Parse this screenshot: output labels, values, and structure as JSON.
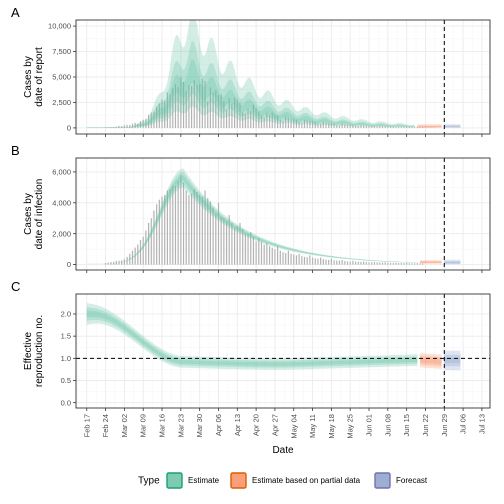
{
  "chart_data": {
    "type": "area",
    "x_axis": {
      "label": "Date",
      "start": "2020-02-13",
      "end": "2020-07-16",
      "tick_labels": [
        "Feb 17",
        "Feb 24",
        "Mar 02",
        "Mar 09",
        "Mar 16",
        "Mar 23",
        "Mar 30",
        "Apr 06",
        "Apr 13",
        "Apr 20",
        "Apr 27",
        "May 04",
        "May 11",
        "May 18",
        "May 25",
        "Jun 01",
        "Jun 08",
        "Jun 15",
        "Jun 22",
        "Jun 29",
        "Jul 06",
        "Jul 13"
      ],
      "tick_dates": [
        "2020-02-17",
        "2020-02-24",
        "2020-03-02",
        "2020-03-09",
        "2020-03-16",
        "2020-03-23",
        "2020-03-30",
        "2020-04-06",
        "2020-04-13",
        "2020-04-20",
        "2020-04-27",
        "2020-05-04",
        "2020-05-11",
        "2020-05-18",
        "2020-05-25",
        "2020-06-01",
        "2020-06-08",
        "2020-06-15",
        "2020-06-22",
        "2020-06-29",
        "2020-07-06",
        "2020-07-13"
      ],
      "vline_date": "2020-06-29"
    },
    "legend": {
      "title": "Type",
      "placement": "bottom",
      "entries": [
        {
          "label": "Estimate",
          "fill": "#66c2a5",
          "stroke": "#1b9e77"
        },
        {
          "label": "Estimate based on partial data",
          "fill": "#fc8d62",
          "stroke": "#d95f02"
        },
        {
          "label": "Forecast",
          "fill": "#8da0cb",
          "stroke": "#7570b3"
        }
      ]
    },
    "panels": [
      {
        "tag": "A",
        "ylabel": [
          "Cases by",
          "date of report"
        ],
        "ylim": [
          -600,
          10600
        ],
        "yticks": [
          0,
          2500,
          5000,
          7500,
          10000
        ],
        "yticklabels": [
          "0",
          "2,500",
          "5,000",
          "7,500",
          "10,000"
        ],
        "hline": null,
        "bars": {
          "start": "2020-02-24",
          "values": [
            50,
            60,
            80,
            90,
            120,
            200,
            180,
            250,
            300,
            280,
            400,
            500,
            420,
            650,
            800,
            900,
            1300,
            1500,
            1600,
            2100,
            2400,
            2800,
            2700,
            3500,
            3300,
            3900,
            4300,
            4000,
            5000,
            4500,
            3600,
            4200,
            4100,
            4700,
            4200,
            4300,
            4800,
            4600,
            2600,
            4000,
            3500,
            3700,
            3200,
            3300,
            2600,
            1800,
            2900,
            2400,
            3000,
            2800,
            2500,
            1500,
            1400,
            1900,
            1700,
            2300,
            2000,
            1600,
            1200,
            1000,
            1500,
            1300,
            1500,
            1300,
            1200,
            800,
            700,
            1100,
            1000,
            900,
            850,
            800,
            600,
            500,
            800,
            750,
            700,
            650,
            550,
            400,
            380,
            550,
            500,
            450,
            420,
            380,
            250,
            240,
            380,
            330,
            300,
            280,
            260,
            200,
            180,
            260,
            240,
            220,
            200,
            190,
            150,
            140,
            190,
            170,
            160,
            150,
            140,
            110,
            100,
            130,
            120,
            110,
            100,
            90,
            80,
            70,
            100,
            90,
            80,
            70,
            60,
            50,
            40
          ]
        },
        "series": [
          {
            "name": "Estimate",
            "type": "Estimate",
            "start": "2020-02-17",
            "end": "2020-06-18",
            "shape": "report",
            "peak": 4800,
            "q": [
              [
                0.8,
                1.22
              ],
              [
                0.6,
                1.55
              ],
              [
                0.38,
                2.15
              ]
            ]
          },
          {
            "name": "Estimate based on partial data",
            "type": "Estimate based on partial data",
            "start": "2020-06-19",
            "end": "2020-06-28",
            "shape": "flat",
            "value": 120,
            "q": [
              [
                0.7,
                1.4
              ],
              [
                0.45,
                2.0
              ],
              [
                0.25,
                3.0
              ]
            ]
          },
          {
            "name": "Forecast",
            "type": "Forecast",
            "start": "2020-06-29",
            "end": "2020-07-05",
            "shape": "flat",
            "value": 110,
            "q": [
              [
                0.65,
                1.5
              ],
              [
                0.4,
                2.2
              ],
              [
                0.2,
                3.2
              ]
            ]
          }
        ]
      },
      {
        "tag": "B",
        "ylabel": [
          "Cases by",
          "date of infection"
        ],
        "ylim": [
          -350,
          6900
        ],
        "yticks": [
          0,
          2000,
          4000,
          6000
        ],
        "yticklabels": [
          "0",
          "2,000",
          "4,000",
          "6,000"
        ],
        "hline": null,
        "bars": {
          "start": "2020-02-24",
          "values": [
            100,
            130,
            160,
            180,
            240,
            250,
            280,
            350,
            500,
            700,
            900,
            1100,
            1300,
            1600,
            1800,
            2200,
            2700,
            3000,
            3500,
            3900,
            4200,
            4400,
            4500,
            4800,
            4900,
            5100,
            5100,
            5400,
            5800,
            5300,
            4800,
            4500,
            4600,
            4900,
            4700,
            4500,
            4400,
            4800,
            4300,
            4100,
            3700,
            3300,
            4000,
            3100,
            3000,
            2800,
            3200,
            2700,
            2400,
            2500,
            2700,
            2300,
            2000,
            2000,
            2100,
            1800,
            1500,
            1700,
            1500,
            1300,
            1400,
            1200,
            1100,
            1000,
            1200,
            900,
            800,
            750,
            900,
            700,
            650,
            600,
            700,
            550,
            500,
            480,
            600,
            450,
            400,
            380,
            450,
            350,
            320,
            300,
            380,
            280,
            260,
            250,
            300,
            230,
            210,
            200,
            250,
            190,
            180,
            170,
            200,
            160,
            150,
            150,
            170,
            140,
            130,
            130,
            150,
            120,
            110,
            110,
            130,
            100,
            100,
            90,
            110,
            90,
            80,
            80,
            90,
            70,
            60
          ]
        },
        "series": [
          {
            "name": "Estimate",
            "type": "Estimate",
            "start": "2020-02-17",
            "end": "2020-06-19",
            "shape": "infection",
            "peak": 5600,
            "q": [
              [
                0.97,
                1.03
              ],
              [
                0.93,
                1.07
              ],
              [
                0.89,
                1.11
              ]
            ]
          },
          {
            "name": "Estimate based on partial data",
            "type": "Estimate based on partial data",
            "start": "2020-06-20",
            "end": "2020-06-28",
            "shape": "flat",
            "value": 140,
            "q": [
              [
                0.8,
                1.25
              ],
              [
                0.6,
                1.6
              ],
              [
                0.45,
                2.0
              ]
            ]
          },
          {
            "name": "Forecast",
            "type": "Forecast",
            "start": "2020-06-29",
            "end": "2020-07-05",
            "shape": "flat",
            "value": 120,
            "q": [
              [
                0.7,
                1.4
              ],
              [
                0.45,
                1.9
              ],
              [
                0.25,
                2.6
              ]
            ]
          }
        ]
      },
      {
        "tag": "C",
        "ylabel": [
          "Effective",
          "reproduction no."
        ],
        "ylim": [
          -0.12,
          2.45
        ],
        "yticks": [
          0.0,
          0.5,
          1.0,
          1.5,
          2.0
        ],
        "yticklabels": [
          "0.0",
          "0.5",
          "1.0",
          "1.5",
          "2.0"
        ],
        "hline": 1.0,
        "bars": null,
        "series": [
          {
            "name": "Estimate",
            "type": "Estimate",
            "start": "2020-02-17",
            "end": "2020-06-19",
            "shape": "rt",
            "q": [
              [
                0.04,
                0.04
              ],
              [
                0.08,
                0.08
              ],
              [
                0.13,
                0.13
              ]
            ]
          },
          {
            "name": "Estimate based on partial data",
            "type": "Estimate based on partial data",
            "start": "2020-06-20",
            "end": "2020-06-28",
            "shape": "rt_partial",
            "q": [
              [
                0.05,
                0.05
              ],
              [
                0.1,
                0.1
              ],
              [
                0.16,
                0.16
              ]
            ]
          },
          {
            "name": "Forecast",
            "type": "Forecast",
            "start": "2020-06-29",
            "end": "2020-07-05",
            "shape": "flat",
            "value": 0.95,
            "q": [
              [
                0.06,
                0.06
              ],
              [
                0.13,
                0.13
              ],
              [
                0.22,
                0.22
              ]
            ]
          }
        ]
      }
    ]
  }
}
